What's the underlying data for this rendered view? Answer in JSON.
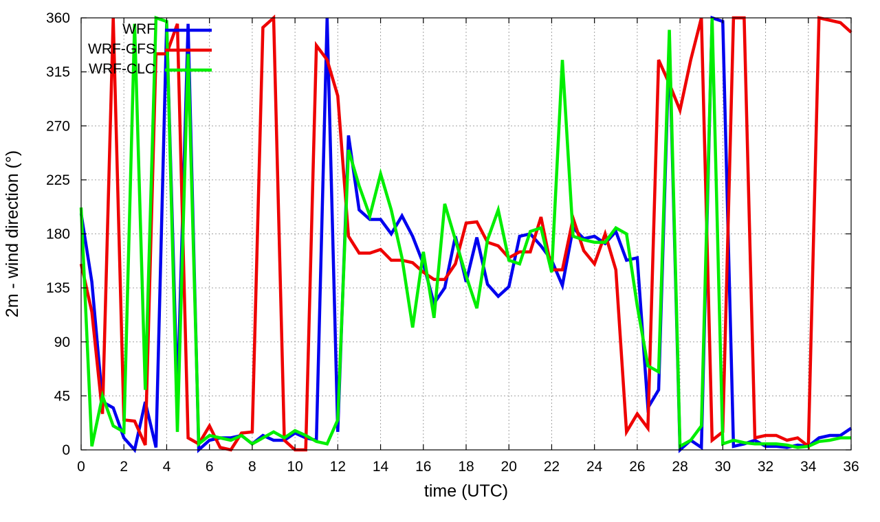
{
  "chart_data": {
    "type": "line",
    "xlabel": "time (UTC)",
    "ylabel": "2m - wind direction (°)",
    "xlim": [
      0,
      36
    ],
    "ylim": [
      0,
      360
    ],
    "xticks": [
      0,
      2,
      4,
      6,
      8,
      10,
      12,
      14,
      16,
      18,
      20,
      22,
      24,
      26,
      28,
      30,
      32,
      34,
      36
    ],
    "yticks": [
      0,
      45,
      90,
      135,
      180,
      225,
      270,
      315,
      360
    ],
    "grid": true,
    "legend_position": "top-left",
    "series": [
      {
        "name": "WRF",
        "color": "#0000ee",
        "x": [
          0,
          0.5,
          1,
          1.5,
          2,
          2.5,
          3,
          3.5,
          4,
          4.5,
          5,
          5.5,
          6,
          6.5,
          7,
          7.5,
          8,
          8.5,
          9,
          9.5,
          10,
          10.5,
          11,
          11.5,
          12,
          12.5,
          13,
          13.5,
          14,
          14.5,
          15,
          15.5,
          16,
          16.5,
          17,
          17.5,
          18,
          18.5,
          19,
          19.5,
          20,
          20.5,
          21,
          21.5,
          22,
          22.5,
          23,
          23.5,
          24,
          24.5,
          25,
          25.5,
          26,
          26.5,
          27,
          27.5,
          28,
          28.5,
          29,
          29.5,
          30,
          30.5,
          31,
          31.5,
          32,
          32.5,
          33,
          33.5,
          34,
          34.5,
          35,
          35.5,
          36
        ],
        "values": [
          197,
          140,
          40,
          35,
          10,
          0,
          40,
          2,
          355,
          42,
          355,
          0,
          8,
          10,
          10,
          12,
          5,
          12,
          8,
          8,
          14,
          10,
          8,
          360,
          15,
          262,
          200,
          192,
          192,
          180,
          195,
          178,
          155,
          122,
          135,
          178,
          140,
          177,
          138,
          128,
          136,
          178,
          180,
          170,
          158,
          137,
          185,
          176,
          178,
          172,
          182,
          158,
          160,
          35,
          50,
          340,
          0,
          8,
          2,
          360,
          357,
          3,
          5,
          8,
          3,
          3,
          2,
          4,
          3,
          10,
          12,
          12,
          18
        ]
      },
      {
        "name": "WRF-GFS",
        "color": "#ee0000",
        "x": [
          0,
          0.5,
          1,
          1.5,
          2,
          2.5,
          3,
          3.5,
          4,
          4.5,
          5,
          5.5,
          6,
          6.5,
          7,
          7.5,
          8,
          8.5,
          9,
          9.5,
          10,
          10.5,
          11,
          11.5,
          12,
          12.5,
          13,
          13.5,
          14,
          14.5,
          15,
          15.5,
          16,
          16.5,
          17,
          17.5,
          18,
          18.5,
          19,
          19.5,
          20,
          20.5,
          21,
          21.5,
          22,
          22.5,
          23,
          23.5,
          24,
          24.5,
          25,
          25.5,
          26,
          26.5,
          27,
          27.5,
          28,
          28.5,
          29,
          29.5,
          30,
          30.5,
          31,
          31.5,
          32,
          32.5,
          33,
          33.5,
          34,
          34.5,
          35,
          35.5,
          36
        ],
        "values": [
          155,
          115,
          30,
          360,
          25,
          24,
          4,
          330,
          330,
          355,
          10,
          5,
          20,
          2,
          0,
          14,
          15,
          352,
          360,
          8,
          0,
          0,
          337,
          325,
          295,
          178,
          164,
          164,
          167,
          158,
          158,
          156,
          148,
          142,
          142,
          155,
          189,
          190,
          173,
          170,
          160,
          165,
          165,
          194,
          150,
          150,
          193,
          166,
          155,
          180,
          150,
          15,
          30,
          18,
          325,
          305,
          283,
          325,
          360,
          8,
          15,
          360,
          360,
          10,
          12,
          12,
          8,
          10,
          3,
          360,
          358,
          356,
          348
        ]
      },
      {
        "name": "WRF-CLC",
        "color": "#00ee00",
        "x": [
          0,
          0.5,
          1,
          1.5,
          2,
          2.5,
          3,
          3.5,
          4,
          4.5,
          5,
          5.5,
          6,
          6.5,
          7,
          7.5,
          8,
          8.5,
          9,
          9.5,
          10,
          10.5,
          11,
          11.5,
          12,
          12.5,
          13,
          13.5,
          14,
          14.5,
          15,
          15.5,
          16,
          16.5,
          17,
          17.5,
          18,
          18.5,
          19,
          19.5,
          20,
          20.5,
          21,
          21.5,
          22,
          22.5,
          23,
          23.5,
          24,
          24.5,
          25,
          25.5,
          26,
          26.5,
          27,
          27.5,
          28,
          28.5,
          29,
          29.5,
          30,
          30.5,
          31,
          31.5,
          32,
          32.5,
          33,
          33.5,
          34,
          34.5,
          35,
          35.5,
          36
        ],
        "values": [
          202,
          3,
          45,
          20,
          15,
          355,
          50,
          360,
          357,
          15,
          330,
          5,
          12,
          10,
          8,
          12,
          5,
          10,
          15,
          10,
          16,
          12,
          7,
          5,
          25,
          250,
          220,
          195,
          230,
          200,
          160,
          102,
          165,
          110,
          205,
          175,
          145,
          118,
          175,
          200,
          158,
          155,
          182,
          185,
          148,
          325,
          178,
          175,
          173,
          173,
          185,
          180,
          120,
          70,
          65,
          350,
          3,
          8,
          20,
          360,
          5,
          8,
          6,
          5,
          5,
          5,
          4,
          2,
          3,
          7,
          8,
          10,
          10
        ]
      }
    ]
  }
}
